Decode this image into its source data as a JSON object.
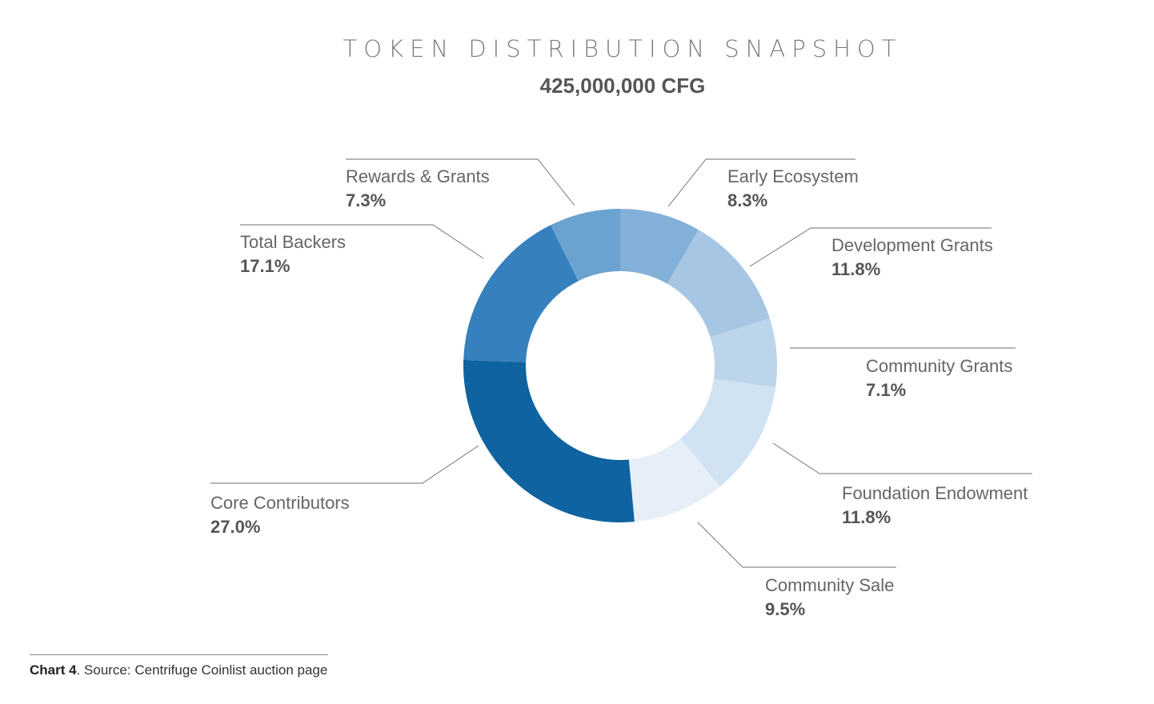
{
  "chart_data": {
    "type": "pie",
    "title": "TOKEN DISTRIBUTION SNAPSHOT",
    "subtitle": "425,000,000 CFG",
    "slices": [
      {
        "label": "Early Ecosystem",
        "value": 8.3,
        "value_label": "8.3%",
        "color": "#83b0d8"
      },
      {
        "label": "Development Grants",
        "value": 11.8,
        "value_label": "11.8%",
        "color": "#a6c6e3"
      },
      {
        "label": "Community Grants",
        "value": 7.1,
        "value_label": "7.1%",
        "color": "#bcd5eb"
      },
      {
        "label": "Foundation Endowment",
        "value": 11.8,
        "value_label": "11.8%",
        "color": "#d1e3f2"
      },
      {
        "label": "Community Sale",
        "value": 9.5,
        "value_label": "9.5%",
        "color": "#e6eff8"
      },
      {
        "label": "Core Contributors",
        "value": 27.0,
        "value_label": "27.0%",
        "color": "#0e63a0"
      },
      {
        "label": "Total Backers",
        "value": 17.1,
        "value_label": "17.1%",
        "color": "#3580bd"
      },
      {
        "label": "Rewards & Grants",
        "value": 7.3,
        "value_label": "7.3%",
        "color": "#6ba3d0"
      }
    ]
  },
  "footer": {
    "chart_number": "Chart 4",
    "source": ". Source: Centrifuge Coinlist auction page"
  }
}
